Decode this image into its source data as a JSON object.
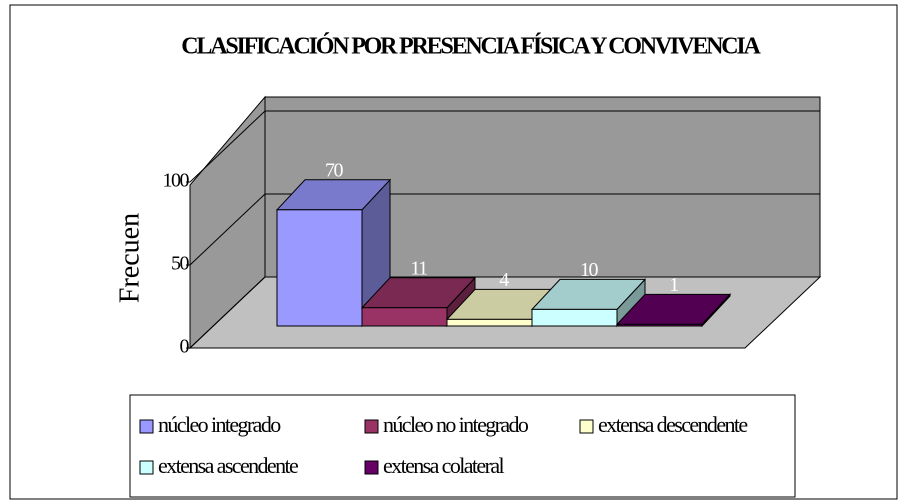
{
  "chart_data": {
    "type": "bar3d",
    "title": "CLASIFICACIÓN POR PRESENCIA FÍSICA Y CONVIVENCIA",
    "y_label": "Frecuen",
    "series": [
      {
        "name": "núcleo integrado",
        "color": "#9999ff",
        "values": [
          70
        ]
      },
      {
        "name": "núcleo no integrado",
        "color": "#993366",
        "values": [
          11
        ]
      },
      {
        "name": "extensa descendente",
        "color": "#ffffcc",
        "values": [
          4
        ]
      },
      {
        "name": "extensa ascendente",
        "color": "#ccffff",
        "values": [
          10
        ]
      },
      {
        "name": "extensa colateral",
        "color": "#660066",
        "values": [
          1
        ]
      }
    ],
    "ylim": [
      0,
      100
    ],
    "yticks": [
      0,
      50,
      100
    ],
    "grid": true
  }
}
